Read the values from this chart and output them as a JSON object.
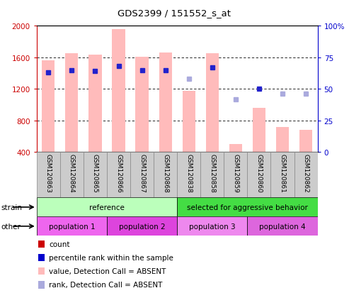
{
  "title": "GDS2399 / 151552_s_at",
  "samples": [
    "GSM120863",
    "GSM120864",
    "GSM120865",
    "GSM120866",
    "GSM120867",
    "GSM120868",
    "GSM120838",
    "GSM120858",
    "GSM120859",
    "GSM120860",
    "GSM120861",
    "GSM120862"
  ],
  "bar_values": [
    1560,
    1650,
    1630,
    1960,
    1610,
    1660,
    1175,
    1650,
    500,
    960,
    720,
    680
  ],
  "rank_values": [
    63,
    65,
    64,
    68,
    65,
    65,
    58,
    67,
    42,
    50,
    46,
    46
  ],
  "rank_absent": [
    false,
    false,
    false,
    false,
    false,
    false,
    true,
    false,
    true,
    false,
    true,
    true
  ],
  "ylim_left": [
    400,
    2000
  ],
  "ylim_right": [
    0,
    100
  ],
  "yticks_left": [
    400,
    800,
    1200,
    1600,
    2000
  ],
  "yticks_right": [
    0,
    25,
    50,
    75,
    100
  ],
  "color_bar_absent": "#ffbbbb",
  "color_rank_present": "#2222cc",
  "color_rank_absent": "#aaaadd",
  "strain_labels": [
    {
      "label": "reference",
      "start": 0,
      "end": 6,
      "color": "#bbffbb"
    },
    {
      "label": "selected for aggressive behavior",
      "start": 6,
      "end": 12,
      "color": "#44dd44"
    }
  ],
  "other_labels": [
    {
      "label": "population 1",
      "start": 0,
      "end": 3,
      "color": "#ee66ee"
    },
    {
      "label": "population 2",
      "start": 3,
      "end": 6,
      "color": "#dd44dd"
    },
    {
      "label": "population 3",
      "start": 6,
      "end": 9,
      "color": "#ee88ee"
    },
    {
      "label": "population 4",
      "start": 9,
      "end": 12,
      "color": "#dd66dd"
    }
  ],
  "legend_items": [
    {
      "label": "count",
      "color": "#cc0000"
    },
    {
      "label": "percentile rank within the sample",
      "color": "#0000cc"
    },
    {
      "label": "value, Detection Call = ABSENT",
      "color": "#ffbbbb"
    },
    {
      "label": "rank, Detection Call = ABSENT",
      "color": "#aaaadd"
    }
  ],
  "bar_width": 0.55,
  "bg_color": "#ffffff",
  "axis_left_color": "#cc0000",
  "axis_right_color": "#0000cc",
  "sample_box_color": "#cccccc",
  "sample_box_edge": "#888888"
}
